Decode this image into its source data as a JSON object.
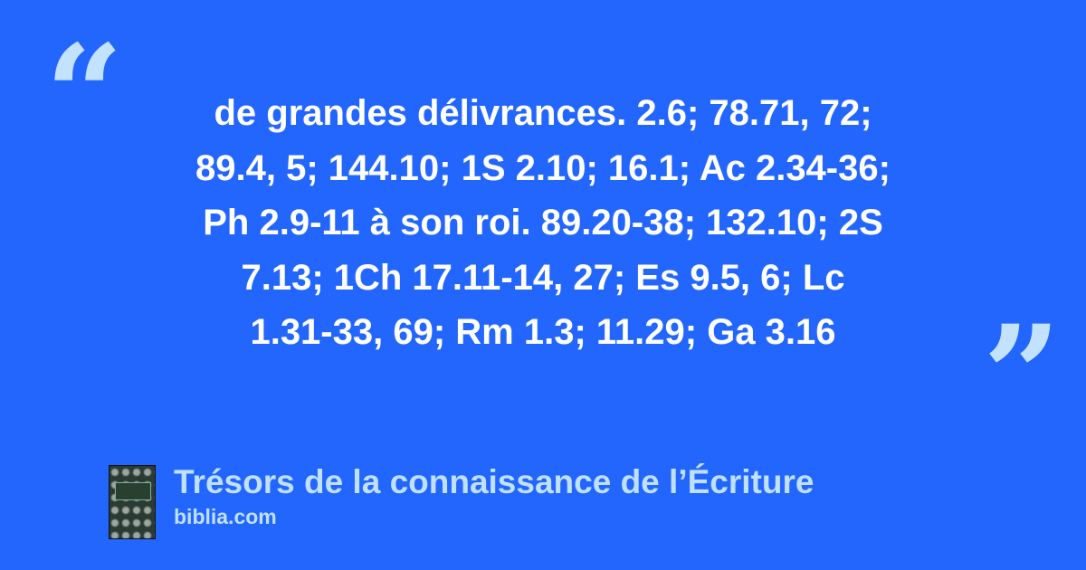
{
  "quote": {
    "lines": [
      "de grandes délivrances. 2.6; 78.71, 72;",
      "89.4, 5; 144.10; 1S 2.10; 16.1; Ac 2.34-36;",
      "Ph 2.9-11 à son roi. 89.20-38; 132.10; 2S",
      "7.13; 1Ch 17.11-14, 27; Es 9.5, 6; Lc",
      "1.31-33, 69; Rm 1.3; 11.29; Ga 3.16"
    ],
    "open_mark": "“",
    "close_mark": "”"
  },
  "source": {
    "title": "Trésors de la connaissance de l’Écriture",
    "site": "biblia.com"
  },
  "colors": {
    "background": "#2266fe",
    "accent": "#bfe0ff",
    "text": "#ffffff"
  }
}
